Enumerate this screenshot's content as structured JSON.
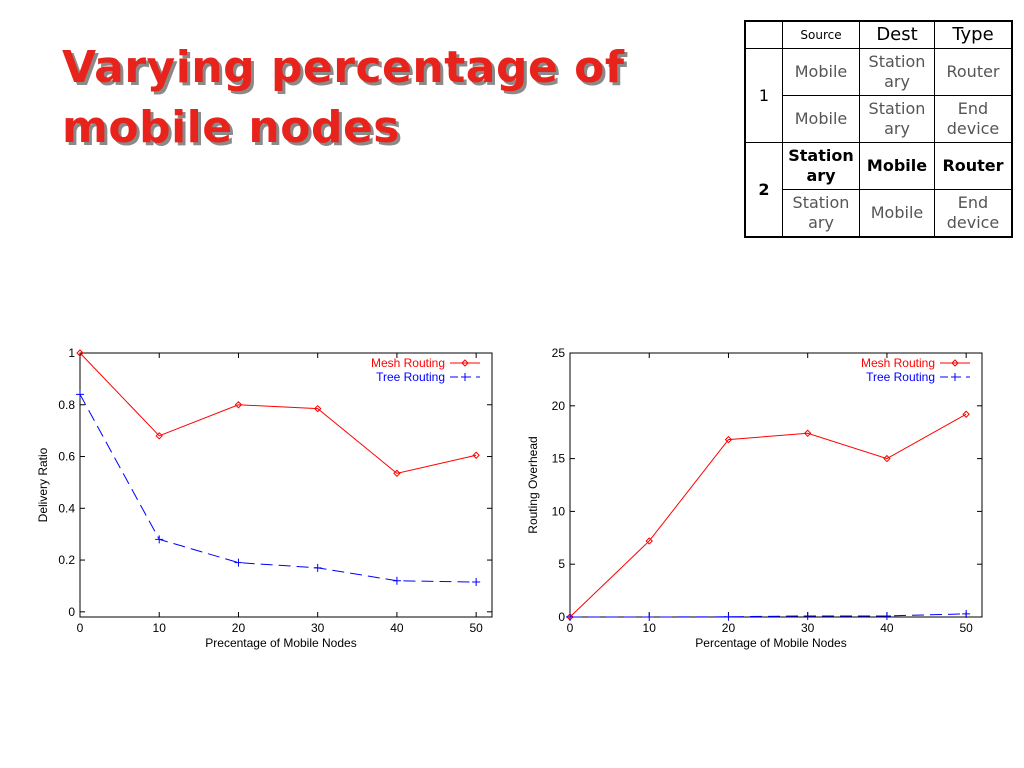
{
  "slide": {
    "title_line1": "Varying percentage of",
    "title_line2": "mobile nodes"
  },
  "table": {
    "headers": [
      "",
      "Source",
      "Dest",
      "Type"
    ],
    "groups": [
      {
        "label": "1",
        "rows": [
          {
            "source": "Mobile",
            "dest": "Station ary",
            "type": "Router"
          },
          {
            "source": "Mobile",
            "dest": "Station ary",
            "type": "End device"
          }
        ]
      },
      {
        "label": "2",
        "rows": [
          {
            "source": "Station ary",
            "dest": "Mobile",
            "type": "Router"
          },
          {
            "source": "Station ary",
            "dest": "Mobile",
            "type": "End device"
          }
        ]
      }
    ]
  },
  "colors": {
    "title": "#e8231c",
    "mesh": "#ff0000",
    "tree": "#0000ff"
  },
  "chart_data": [
    {
      "type": "line",
      "xlabel": "Precentage of Mobile Nodes",
      "ylabel": "Delivery Ratio",
      "x": [
        0,
        10,
        20,
        30,
        40,
        50
      ],
      "xlim": [
        0,
        52
      ],
      "ylim": [
        -0.02,
        1.0
      ],
      "xticks": [
        0,
        10,
        20,
        30,
        40,
        50
      ],
      "yticks": [
        0,
        0.2,
        0.4,
        0.6,
        0.8,
        1
      ],
      "ytick_labels": [
        "0",
        "0.2",
        "0.4",
        "0.6",
        "0.8",
        "1"
      ],
      "legend_position": "top-right",
      "grid": false,
      "series": [
        {
          "name": "Mesh Routing",
          "values": [
            1.0,
            0.68,
            0.8,
            0.785,
            0.535,
            0.605
          ]
        },
        {
          "name": "Tree Routing",
          "values": [
            0.84,
            0.28,
            0.19,
            0.17,
            0.12,
            0.115
          ]
        }
      ]
    },
    {
      "type": "line",
      "xlabel": "Percentage of Mobile Nodes",
      "ylabel": "Routing Overhead",
      "x": [
        0,
        10,
        20,
        30,
        40,
        50
      ],
      "xlim": [
        0,
        52
      ],
      "ylim": [
        0,
        25
      ],
      "xticks": [
        0,
        10,
        20,
        30,
        40,
        50
      ],
      "yticks": [
        0,
        5,
        10,
        15,
        20,
        25
      ],
      "ytick_labels": [
        "0",
        "5",
        "10",
        "15",
        "20",
        "25"
      ],
      "legend_position": "top-right",
      "grid": false,
      "series": [
        {
          "name": "Mesh Routing",
          "values": [
            0,
            7.2,
            16.8,
            17.4,
            15.0,
            19.2
          ]
        },
        {
          "name": "Tree Routing",
          "values": [
            0,
            0,
            0.02,
            0.1,
            0.1,
            0.3
          ]
        }
      ]
    }
  ]
}
